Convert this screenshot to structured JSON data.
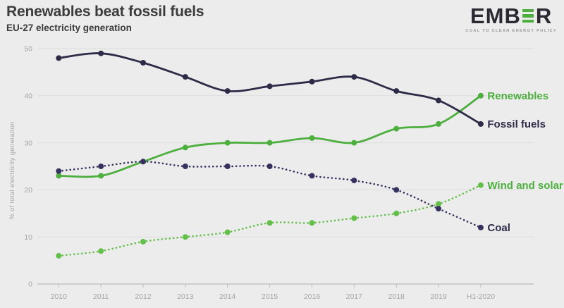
{
  "header": {
    "title": "Renewables beat fossil fuels",
    "subtitle": "EU-27 electricity generation"
  },
  "logo": {
    "text_start": "EMB",
    "text_end": "R",
    "bars_icon": "three-green-bars-E",
    "tagline": "COAL TO CLEAN ENERGY POLICY",
    "bar_color": "#4caf3e",
    "text_color": "#2b2a33"
  },
  "theme": {
    "background": "#ececec",
    "title_color": "#3c3c3c",
    "grid_color": "#dcdcdc",
    "baseline_color": "#bdbdbd",
    "axis_text_color": "#a5a5a5"
  },
  "chart_data": {
    "type": "line",
    "title": "Renewables beat fossil fuels",
    "subtitle": "EU-27 electricity generation",
    "xlabel": "",
    "ylabel": "% of total electricity generation",
    "ylim": [
      0,
      50
    ],
    "yticks": [
      0,
      10,
      20,
      30,
      40,
      50
    ],
    "grid": true,
    "legend_position": "right-end-labels",
    "categories": [
      "2010",
      "2011",
      "2012",
      "2013",
      "2014",
      "2015",
      "2016",
      "2017",
      "2018",
      "2019",
      "H1-2020"
    ],
    "series": [
      {
        "name": "Renewables",
        "style": "solid",
        "color": "#4caf3e",
        "label_color": "#4caf3e",
        "values": [
          23,
          23,
          26,
          29,
          30,
          30,
          31,
          30,
          33,
          34,
          40
        ]
      },
      {
        "name": "Wind and solar",
        "style": "dotted",
        "color": "#63bf4a",
        "label_color": "#4caf3e",
        "values": [
          6,
          7,
          9,
          10,
          11,
          13,
          13,
          14,
          15,
          17,
          21
        ]
      },
      {
        "name": "Coal",
        "style": "dotted",
        "color": "#353260",
        "label_color": "#2d2b47",
        "values": [
          24,
          25,
          26,
          25,
          25,
          25,
          23,
          22,
          20,
          16,
          12
        ]
      },
      {
        "name": "Fossil fuels",
        "style": "solid",
        "color": "#2d2b47",
        "label_color": "#2d2b47",
        "values": [
          48,
          49,
          47,
          44,
          41,
          42,
          43,
          44,
          41,
          39,
          34
        ]
      }
    ]
  }
}
